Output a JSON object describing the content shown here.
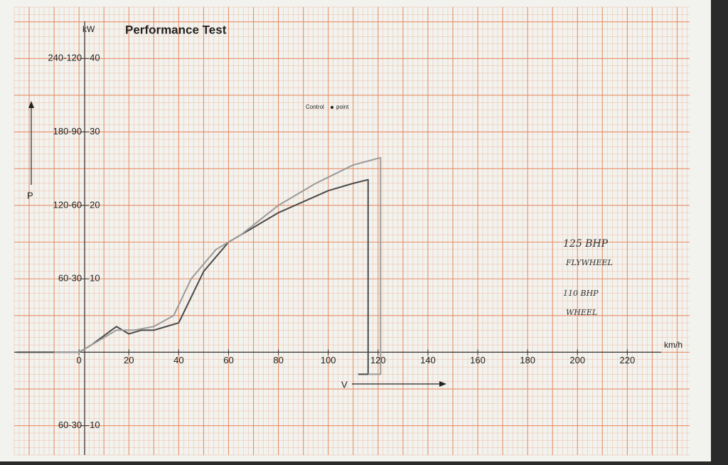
{
  "chart_data": {
    "type": "line",
    "title": "Performance Test",
    "y_unit": "kW",
    "x_unit": "km/h",
    "y_axis_label": "P",
    "x_axis_label": "V",
    "control_label": [
      "Control",
      "point"
    ],
    "xlim": [
      -26,
      245
    ],
    "ylim": [
      -14,
      47
    ],
    "xticks": [
      0,
      20,
      40,
      60,
      80,
      100,
      120,
      140,
      160,
      180,
      200,
      220
    ],
    "yticks": [
      {
        "value": -10,
        "label": "10"
      },
      10,
      20,
      30,
      40
    ],
    "yticks_alt": [
      {
        "value": -10,
        "label": "60-30"
      },
      {
        "value": 10,
        "label": "60-30"
      },
      {
        "value": 20,
        "label": "120-60"
      },
      {
        "value": 30,
        "label": "180-90"
      },
      {
        "value": 40,
        "label": "240-120"
      }
    ],
    "grid": true,
    "annotations": [
      "125 BHP",
      "FLYWHEEL",
      "110 BHP",
      "WHEEL"
    ],
    "series": [
      {
        "color": "#4a4a4a",
        "x": [
          -25,
          0,
          5,
          15,
          20,
          25,
          30,
          35,
          40,
          50,
          60,
          70,
          80,
          90,
          100,
          110,
          116,
          116,
          112
        ],
        "values": [
          0,
          0,
          1,
          3.5,
          2.5,
          3,
          3,
          3.5,
          4,
          11,
          15,
          17,
          19,
          20.5,
          22,
          23,
          23.5,
          -3,
          -3
        ]
      },
      {
        "color": "#9a9a9a",
        "x": [
          -10,
          0,
          5,
          15,
          22,
          30,
          38,
          45,
          55,
          65,
          80,
          95,
          110,
          121,
          121,
          116
        ],
        "values": [
          0,
          0,
          1,
          3,
          3,
          3.5,
          5,
          10,
          14,
          16,
          20,
          23,
          25.5,
          26.5,
          -3,
          -3
        ]
      }
    ]
  }
}
